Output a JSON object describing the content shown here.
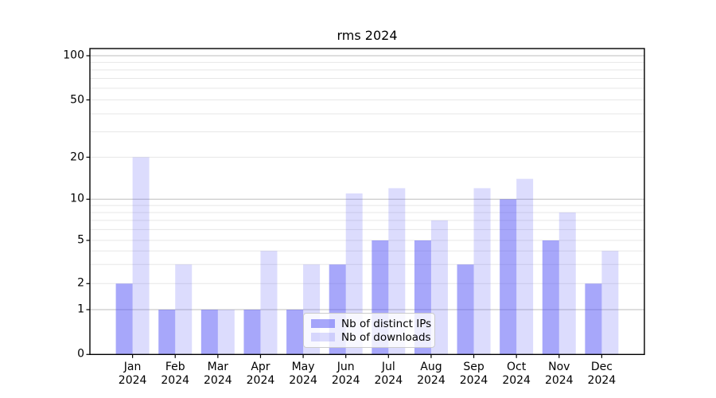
{
  "figure": {
    "background": "#ffffff"
  },
  "chart_data": {
    "type": "bar",
    "title": "rms 2024",
    "categories": [
      "Jan",
      "Feb",
      "Mar",
      "Apr",
      "May",
      "Jun",
      "Jul",
      "Aug",
      "Sep",
      "Oct",
      "Nov",
      "Dec"
    ],
    "category_year": "2024",
    "series": [
      {
        "name": "Nb of distinct IPs",
        "values": [
          2,
          1,
          1,
          1,
          1,
          3,
          5,
          5,
          3,
          10,
          5,
          2
        ]
      },
      {
        "name": "Nb of downloads",
        "values": [
          20,
          3,
          1,
          4,
          3,
          11,
          12,
          7,
          12,
          14,
          8,
          4
        ]
      }
    ],
    "xlabel": "",
    "ylabel": "",
    "yscale": "symlog",
    "yticks": [
      0,
      1,
      2,
      5,
      10,
      20,
      50,
      100
    ],
    "ylim": [
      0,
      110
    ],
    "grid": "both",
    "legend_position": "lower center"
  },
  "colors": {
    "bar_base": "#5050f5",
    "series_alpha": [
      0.5,
      0.2
    ],
    "grid_major": "#bdbdbd",
    "grid_minor": "#e7e7e7",
    "spine": "#000000",
    "tick": "#000000",
    "legend_border": "#cccccc"
  }
}
